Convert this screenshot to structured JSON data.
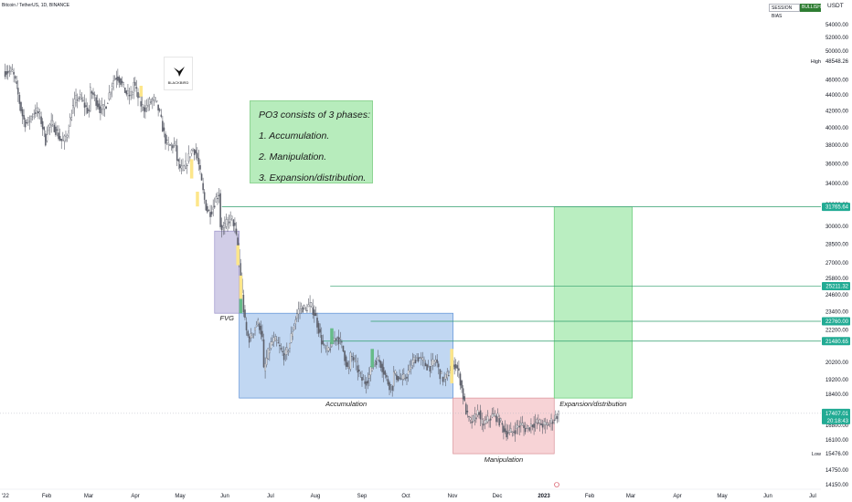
{
  "header": {
    "symbol_line": "Bitcoin / TetherUS, 1D, BINANCE",
    "badges": [
      "SESSION BIAS",
      "BULLISH"
    ],
    "currency": "USDT"
  },
  "logo": {
    "label": "BLACKBIRD",
    "icon": "bird-icon"
  },
  "note": {
    "title": "PO3 consists of 3 phases:",
    "items": [
      "1. Accumulation.",
      "2. Manipulation.",
      "3. Expansion/distribution."
    ]
  },
  "colors": {
    "up": "#ffffff",
    "down": "#5d606b",
    "wick": "#5d606b",
    "accumulation": "#9bbfea",
    "manipulation": "#f2b8bd",
    "expansion": "#8fe39b",
    "fvg": "#b5aed8",
    "level_line": "#2f9e6b",
    "level_label": "#22ab94",
    "highlight_yellow": "#fde68a",
    "highlight_green": "#66bb88"
  },
  "chart_data": {
    "type": "candlestick",
    "title": "Bitcoin / TetherUS, 1D, BINANCE",
    "ylabel": "USDT",
    "ylim": [
      13650,
      55500
    ],
    "y_ticks": [
      14150,
      14750,
      15476,
      16100,
      16800,
      17400,
      18400,
      19200,
      20200,
      21400,
      22200,
      23400,
      24600,
      25800,
      27000,
      28500,
      30000,
      32000,
      34000,
      36000,
      38000,
      40000,
      42000,
      44000,
      46000,
      48548.26,
      50000,
      52000,
      54000
    ],
    "y_tick_labels": [
      "14150.00",
      "14750.00",
      "15476.00",
      "16100.00",
      "16800.00",
      "17400.00",
      "18400.00",
      "19200.00",
      "20200.00",
      "21400.00",
      "22200.00",
      "23400.00",
      "24600.00",
      "25800.00",
      "27000.00",
      "28500.00",
      "30000.00",
      "32000.00",
      "34000.00",
      "36000.00",
      "38000.00",
      "40000.00",
      "42000.00",
      "44000.00",
      "46000.00",
      "48548.26",
      "50000.00",
      "52000.00",
      "54000.00"
    ],
    "high_label": "High",
    "high_value": 48548.26,
    "low_label": "Low",
    "low_value": 15476.0,
    "x_labels": [
      "'22",
      "Feb",
      "Mar",
      "Apr",
      "May",
      "Jun",
      "Jul",
      "Aug",
      "Sep",
      "Oct",
      "Nov",
      "Dec",
      "2023",
      "Feb",
      "Mar",
      "Apr",
      "May",
      "Jun",
      "Jul"
    ],
    "price_levels": [
      {
        "value": 31765.64,
        "label": "31765.64",
        "from": "2022-06-01"
      },
      {
        "value": 25211.32,
        "label": "25211.32",
        "from": "2022-08-15"
      },
      {
        "value": 22760.0,
        "label": "22760.00",
        "from": "2022-09-12"
      },
      {
        "value": 21480.65,
        "label": "21480.65",
        "from": "2022-08-10"
      }
    ],
    "last_price": {
      "value": 17407.01,
      "label": "17407.01",
      "countdown": "20:18:43"
    },
    "zones": [
      {
        "label": "Accumulation",
        "start": "2022-06-13",
        "end": "2022-11-08",
        "low": 18200,
        "high": 23300
      },
      {
        "label": "Manipulation",
        "start": "2022-11-08",
        "end": "2023-01-17",
        "low": 15476,
        "high": 18200
      },
      {
        "label": "Expansion/distribution",
        "start": "2023-01-17",
        "end": "2023-03-12",
        "low": 18200,
        "high": 31765.64
      },
      {
        "label": "FVG",
        "start": "2022-05-27",
        "end": "2022-06-13",
        "low": 23300,
        "high": 29600
      }
    ],
    "candles_daily_approx": [
      {
        "month": "Jan",
        "open": 47200,
        "high": 47600,
        "low": 35400,
        "close": 38500
      },
      {
        "month": "Feb",
        "open": 38500,
        "high": 45800,
        "low": 34400,
        "close": 43200
      },
      {
        "month": "Mar",
        "open": 43200,
        "high": 48200,
        "low": 37200,
        "close": 45500
      },
      {
        "month": "Apr",
        "open": 45500,
        "high": 47400,
        "low": 37600,
        "close": 37700
      },
      {
        "month": "May",
        "open": 37700,
        "high": 40000,
        "low": 26700,
        "close": 31800
      },
      {
        "month": "Jun",
        "open": 31800,
        "high": 31900,
        "low": 17600,
        "close": 19900
      },
      {
        "month": "Jul",
        "open": 19900,
        "high": 24600,
        "low": 18800,
        "close": 23300
      },
      {
        "month": "Aug",
        "open": 23300,
        "high": 25200,
        "low": 19600,
        "close": 20000
      },
      {
        "month": "Sep",
        "open": 20000,
        "high": 22800,
        "low": 18200,
        "close": 19400
      },
      {
        "month": "Oct",
        "open": 19400,
        "high": 21000,
        "low": 18200,
        "close": 20500
      },
      {
        "month": "Nov",
        "open": 20500,
        "high": 21500,
        "low": 15500,
        "close": 17150
      },
      {
        "month": "Dec",
        "open": 17150,
        "high": 18400,
        "low": 16300,
        "close": 16550
      },
      {
        "month": "Jan 2023",
        "open": 16550,
        "high": 17600,
        "low": 16500,
        "close": 17407.01
      }
    ],
    "grid": false,
    "legend": "none"
  }
}
